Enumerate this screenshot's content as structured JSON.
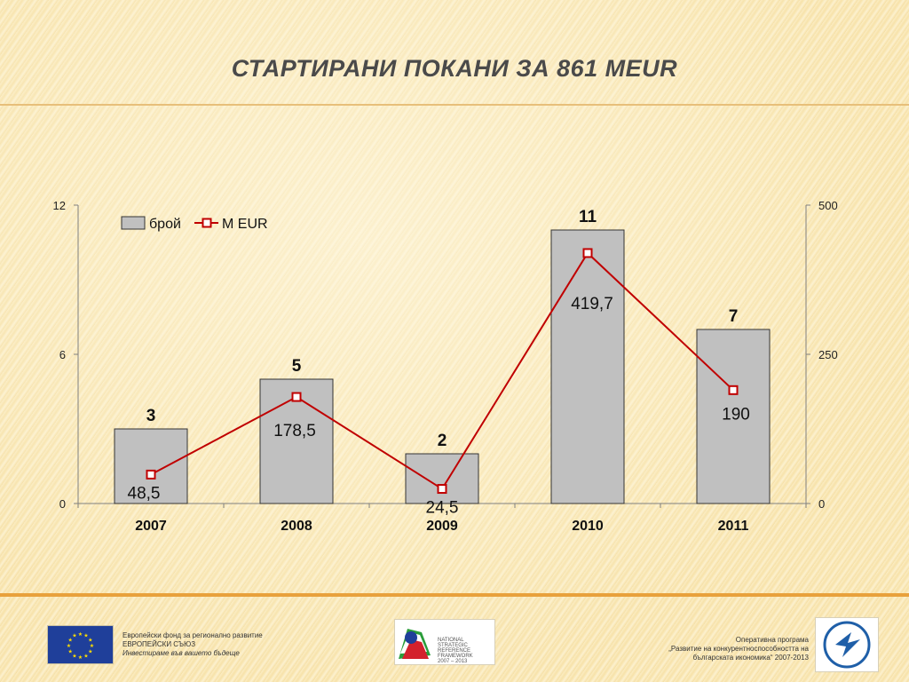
{
  "title": "СТАРТИРАНИ ПОКАНИ ЗА 861 MEUR",
  "chart_data": {
    "type": "bar",
    "categories": [
      "2007",
      "2008",
      "2009",
      "2010",
      "2011"
    ],
    "series": [
      {
        "name": "брой",
        "type": "bar",
        "axis": "left",
        "values": [
          3,
          5,
          2,
          11,
          7
        ],
        "labels": [
          "3",
          "5",
          "2",
          "11",
          "7"
        ],
        "color": "#c0c0c0"
      },
      {
        "name": "M EUR",
        "type": "line",
        "axis": "right",
        "values": [
          48.5,
          178.5,
          24.5,
          419.7,
          190
        ],
        "labels": [
          "48,5",
          "178,5",
          "24,5",
          "419,7",
          "190"
        ],
        "color": "#c00000"
      }
    ],
    "left_axis": {
      "ylim": [
        0,
        12
      ],
      "ticks": [
        "0",
        "6",
        "12"
      ]
    },
    "right_axis": {
      "ylim": [
        0,
        500
      ],
      "ticks": [
        "0",
        "250",
        "500"
      ]
    },
    "legend_position": "top-left",
    "grid": false
  },
  "footer": {
    "left_lines": [
      "Европейски фонд за регионално развитие",
      "ЕВРОПЕЙСКИ СЪЮЗ",
      "Инвестираме във вашето бъдеще"
    ],
    "nsrf_lines": [
      "NATIONAL",
      "STRATEGIC",
      "REFERENCE FRAMEWORK",
      "2007 – 2013"
    ],
    "right_lines": [
      "Оперативна програма",
      "„Развитие на конкурентноспособността на",
      "българската икономика“ 2007-2013"
    ]
  },
  "colors": {
    "accent_rule": "#e8a13c",
    "eu_blue": "#1f3f9a",
    "eu_star": "#ffde00"
  }
}
